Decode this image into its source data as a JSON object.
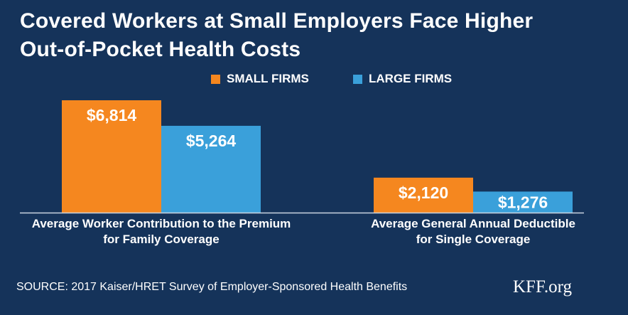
{
  "chart_data": {
    "type": "bar",
    "title": "Covered Workers at Small Employers Face Higher Out-of-Pocket Health Costs",
    "title_lines": [
      "Covered Workers at Small Employers Face Higher",
      "Out-of-Pocket Health Costs"
    ],
    "categories": [
      "Average Worker Contribution to the Premium for Family Coverage",
      "Average General Annual Deductible for Single  Coverage"
    ],
    "category_lines": [
      [
        "Average Worker Contribution to the Premium",
        "for Family Coverage"
      ],
      [
        "Average General Annual Deductible",
        "for Single  Coverage"
      ]
    ],
    "series": [
      {
        "name": "SMALL FIRMS",
        "color": "#f5871f",
        "values": [
          6814,
          2120
        ],
        "labels": [
          "$6,814",
          "$2,120"
        ]
      },
      {
        "name": "LARGE FIRMS",
        "color": "#3aa0da",
        "values": [
          5264,
          1276
        ],
        "labels": [
          "$5,264",
          "$1,276"
        ]
      }
    ],
    "ylim": [
      0,
      7000
    ],
    "grid": false,
    "legend_position": "top-right",
    "xlabel": "",
    "ylabel": ""
  },
  "source": "SOURCE: 2017 Kaiser/HRET Survey of Employer-Sponsored Health Benefits",
  "brand": "KFF.org",
  "colors": {
    "background": "#15335a"
  }
}
